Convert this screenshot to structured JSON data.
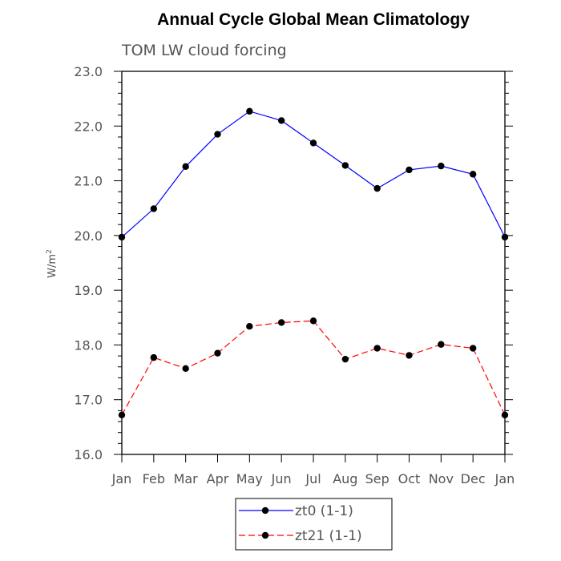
{
  "chart_data": {
    "type": "line",
    "title": "Annual Cycle Global Mean Climatology",
    "subtitle": "TOM LW cloud forcing",
    "ylabel": "W/m",
    "ylabel_superscript": "2",
    "xlabel": "",
    "categories": [
      "Jan",
      "Feb",
      "Mar",
      "Apr",
      "May",
      "Jun",
      "Jul",
      "Aug",
      "Sep",
      "Oct",
      "Nov",
      "Dec",
      "Jan"
    ],
    "ylim": [
      16.0,
      23.0
    ],
    "yticks": [
      "16.0",
      "17.0",
      "18.0",
      "19.0",
      "20.0",
      "21.0",
      "22.0",
      "23.0"
    ],
    "grid": false,
    "legend_position": "bottom-center",
    "series": [
      {
        "name": "zt0 (1-1)",
        "color": "#0000ff",
        "dashed": false,
        "values": [
          19.97,
          20.49,
          21.26,
          21.85,
          22.27,
          22.1,
          21.69,
          21.28,
          20.86,
          21.2,
          21.27,
          21.12,
          19.97
        ]
      },
      {
        "name": "zt21 (1-1)",
        "color": "#ff0000",
        "dashed": true,
        "values": [
          16.72,
          17.77,
          17.57,
          17.85,
          18.34,
          18.41,
          18.44,
          17.74,
          17.94,
          17.81,
          18.01,
          17.94,
          16.72
        ]
      }
    ]
  }
}
